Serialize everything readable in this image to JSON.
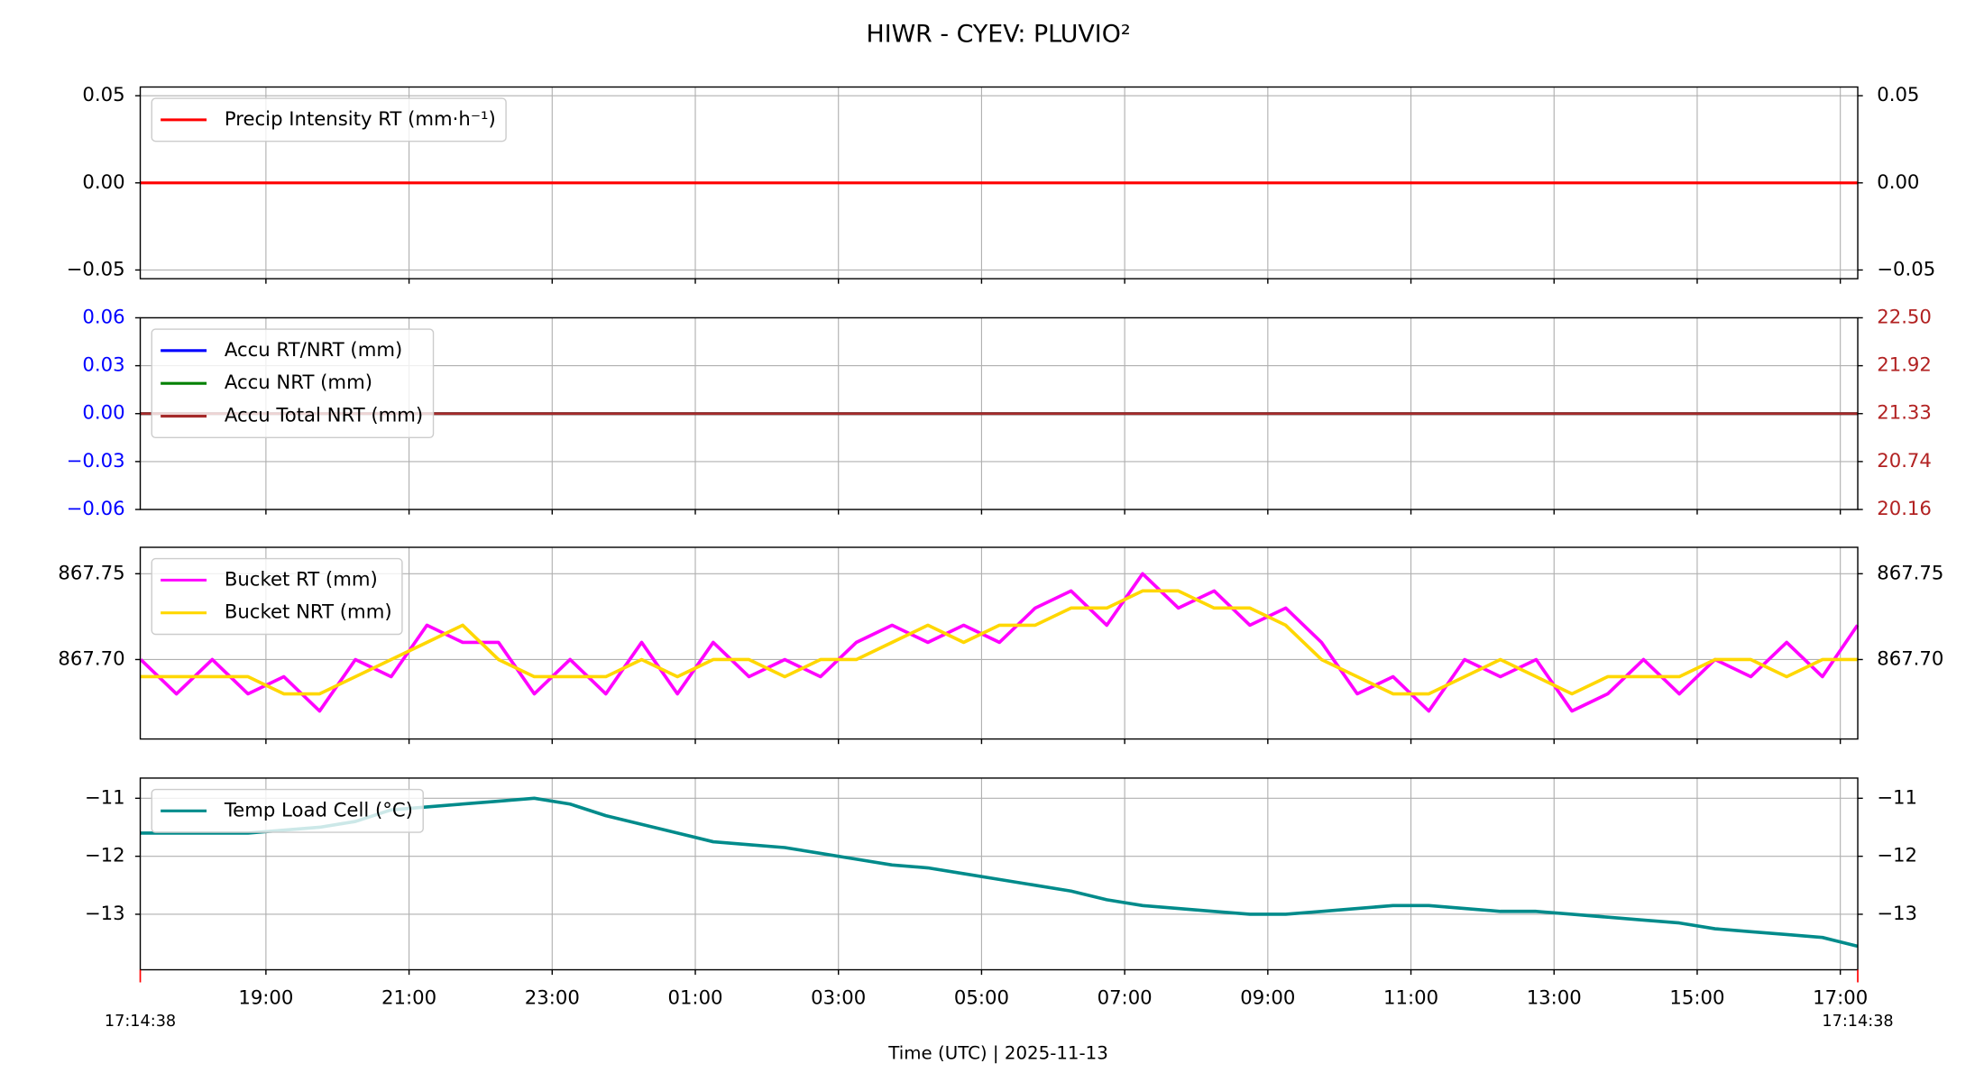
{
  "title": "HIWR - CYEV: PLUVIO²",
  "xlabel": "Time (UTC)  |  2025-11-13",
  "chart_data": [
    {
      "type": "line",
      "legend": "upper left",
      "grid": true,
      "mirror_y": true,
      "xlim": [
        17.2439,
        41.2439
      ],
      "xticks": [
        19,
        21,
        23,
        25,
        27,
        29,
        31,
        33,
        35,
        37,
        39,
        41
      ],
      "ylim": [
        -0.055,
        0.055
      ],
      "yticks": [
        {
          "value": -0.05,
          "label": "−0.05"
        },
        {
          "value": 0,
          "label": "0.00"
        },
        0.05
      ],
      "x": [
        17.2439,
        41.2439
      ],
      "series": [
        {
          "name": "Precip Intensity RT (mm·h⁻¹)",
          "color": "#ff0000",
          "values": [
            0,
            0
          ]
        }
      ]
    },
    {
      "type": "line",
      "legend": "upper left",
      "grid": true,
      "xlim": [
        17.2439,
        41.2439
      ],
      "xticks": [
        19,
        21,
        23,
        25,
        27,
        29,
        31,
        33,
        35,
        37,
        39,
        41
      ],
      "ylim": [
        -0.06,
        0.06
      ],
      "ytick_color": "#0000ff",
      "yticks": [
        {
          "value": -0.06,
          "label": "−0.06"
        },
        {
          "value": -0.03,
          "label": "−0.03"
        },
        {
          "value": 0,
          "label": "0.00"
        },
        0.03,
        0.06
      ],
      "y2lim": [
        20.16,
        22.5
      ],
      "y2tick_color": "#b22222",
      "y2ticks": [
        20.16,
        {
          "value": 20.745,
          "label": "20.74"
        },
        21.33,
        {
          "value": 21.915,
          "label": "21.92"
        },
        {
          "value": 22.5,
          "label": "22.50"
        }
      ],
      "x": [
        17.2439,
        41.2439
      ],
      "series": [
        {
          "name": "Accu RT/NRT (mm)",
          "color": "#0000ff",
          "values": [
            0,
            0
          ]
        },
        {
          "name": "Accu NRT (mm)",
          "color": "#008000",
          "values": [
            0,
            0
          ]
        },
        {
          "name": "Accu Total NRT (mm)",
          "color": "#a52a2a",
          "axis": "y2",
          "values": [
            21.33,
            21.33
          ]
        }
      ]
    },
    {
      "type": "line",
      "legend": "upper left",
      "grid": true,
      "mirror_y": true,
      "xlim": [
        17.2439,
        41.2439
      ],
      "xticks": [
        19,
        21,
        23,
        25,
        27,
        29,
        31,
        33,
        35,
        37,
        39,
        41
      ],
      "ylim": [
        867.6537,
        867.7654
      ],
      "yticks": [
        {
          "value": 867.7,
          "label": "867.70"
        },
        867.75
      ],
      "x": [
        17.25,
        17.75,
        18.25,
        18.75,
        19.25,
        19.75,
        20.25,
        20.75,
        21.25,
        21.75,
        22.25,
        22.75,
        23.25,
        23.75,
        24.25,
        24.75,
        25.25,
        25.75,
        26.25,
        26.75,
        27.25,
        27.75,
        28.25,
        28.75,
        29.25,
        29.75,
        30.25,
        30.75,
        31.25,
        31.75,
        32.25,
        32.75,
        33.25,
        33.75,
        34.25,
        34.75,
        35.25,
        35.75,
        36.25,
        36.75,
        37.25,
        37.75,
        38.25,
        38.75,
        39.25,
        39.75,
        40.25,
        40.75,
        41.24
      ],
      "series": [
        {
          "name": "Bucket RT (mm)",
          "color": "#ff00ff",
          "values": [
            867.7,
            867.68,
            867.7,
            867.68,
            867.69,
            867.67,
            867.7,
            867.69,
            867.72,
            867.71,
            867.71,
            867.68,
            867.7,
            867.68,
            867.71,
            867.68,
            867.71,
            867.69,
            867.7,
            867.69,
            867.71,
            867.72,
            867.71,
            867.72,
            867.71,
            867.73,
            867.74,
            867.72,
            867.75,
            867.73,
            867.74,
            867.72,
            867.73,
            867.71,
            867.68,
            867.69,
            867.67,
            867.7,
            867.69,
            867.7,
            867.67,
            867.68,
            867.7,
            867.68,
            867.7,
            867.69,
            867.71,
            867.69,
            867.72
          ]
        },
        {
          "name": "Bucket NRT (mm)",
          "color": "#ffd700",
          "values": [
            867.69,
            867.69,
            867.69,
            867.69,
            867.68,
            867.68,
            867.69,
            867.7,
            867.71,
            867.72,
            867.7,
            867.69,
            867.69,
            867.69,
            867.7,
            867.69,
            867.7,
            867.7,
            867.69,
            867.7,
            867.7,
            867.71,
            867.72,
            867.71,
            867.72,
            867.72,
            867.73,
            867.73,
            867.74,
            867.74,
            867.73,
            867.73,
            867.72,
            867.7,
            867.69,
            867.68,
            867.68,
            867.69,
            867.7,
            867.69,
            867.68,
            867.69,
            867.69,
            867.69,
            867.7,
            867.7,
            867.69,
            867.7,
            867.7
          ]
        }
      ]
    },
    {
      "type": "line",
      "legend": "upper left",
      "grid": true,
      "mirror_y": true,
      "xlim": [
        17.2439,
        41.2439
      ],
      "xticks": [
        {
          "value": 19,
          "label": "19:00"
        },
        {
          "value": 21,
          "label": "21:00"
        },
        {
          "value": 23,
          "label": "23:00"
        },
        {
          "value": 25,
          "label": "01:00"
        },
        {
          "value": 27,
          "label": "03:00"
        },
        {
          "value": 29,
          "label": "05:00"
        },
        {
          "value": 31,
          "label": "07:00"
        },
        {
          "value": 33,
          "label": "09:00"
        },
        {
          "value": 35,
          "label": "11:00"
        },
        {
          "value": 37,
          "label": "13:00"
        },
        {
          "value": 39,
          "label": "15:00"
        },
        {
          "value": 41,
          "label": "17:00"
        }
      ],
      "x_end_labels": [
        "17:14:38",
        "17:14:38"
      ],
      "ylim": [
        -13.957,
        -10.652
      ],
      "yticks": [
        {
          "value": -13,
          "label": "−13"
        },
        {
          "value": -12,
          "label": "−12"
        },
        {
          "value": -11,
          "label": "−11"
        }
      ],
      "x": [
        17.25,
        17.75,
        18.25,
        18.75,
        19.25,
        19.75,
        20.25,
        20.75,
        21.25,
        21.75,
        22.25,
        22.75,
        23.25,
        23.75,
        24.25,
        24.75,
        25.25,
        25.75,
        26.25,
        26.75,
        27.25,
        27.75,
        28.25,
        28.75,
        29.25,
        29.75,
        30.25,
        30.75,
        31.25,
        31.75,
        32.25,
        32.75,
        33.25,
        33.75,
        34.25,
        34.75,
        35.25,
        35.75,
        36.25,
        36.75,
        37.25,
        37.75,
        38.25,
        38.75,
        39.25,
        39.75,
        40.25,
        40.75,
        41.24
      ],
      "series": [
        {
          "name": "Temp Load Cell (°C)",
          "color": "#008b8b",
          "values": [
            -11.6,
            -11.6,
            -11.6,
            -11.6,
            -11.55,
            -11.5,
            -11.4,
            -11.2,
            -11.15,
            -11.1,
            -11.05,
            -11.0,
            -11.1,
            -11.3,
            -11.45,
            -11.6,
            -11.75,
            -11.8,
            -11.85,
            -11.95,
            -12.05,
            -12.15,
            -12.2,
            -12.3,
            -12.4,
            -12.5,
            -12.6,
            -12.75,
            -12.85,
            -12.9,
            -12.95,
            -13.0,
            -13.0,
            -12.95,
            -12.9,
            -12.85,
            -12.85,
            -12.9,
            -12.95,
            -12.95,
            -13.0,
            -13.05,
            -13.1,
            -13.15,
            -13.25,
            -13.3,
            -13.35,
            -13.4,
            -13.55
          ]
        }
      ]
    }
  ]
}
